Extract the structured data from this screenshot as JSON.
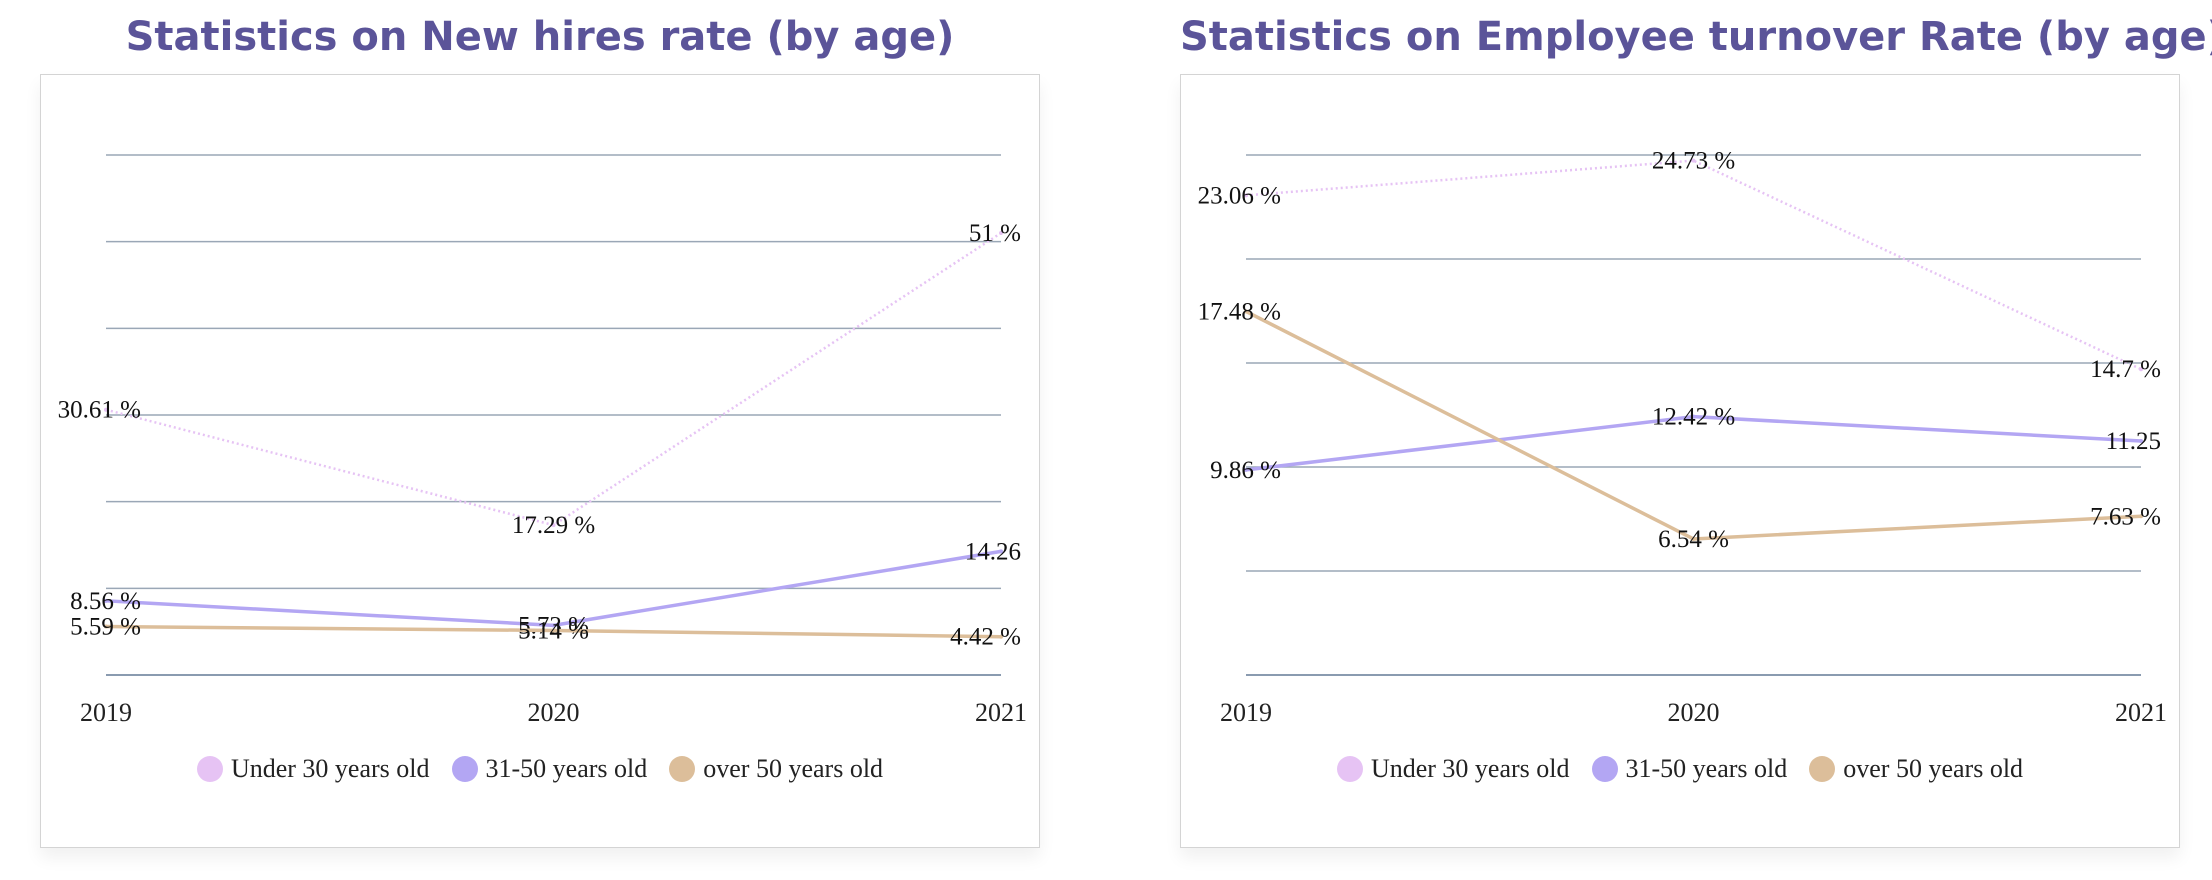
{
  "chart_data": [
    {
      "type": "line",
      "title": "Statistics on New hires rate (by age)",
      "categories": [
        "2019",
        "2020",
        "2021"
      ],
      "ylim": [
        0,
        60
      ],
      "grid": true,
      "legend_position": "bottom",
      "series": [
        {
          "name": "Under 30 years old",
          "values": [
            30.61,
            17.29,
            51
          ],
          "labels": [
            "30.61 %",
            "17.29 %",
            "51 %"
          ],
          "color": "#e6c3f4",
          "dashed": true
        },
        {
          "name": "31-50 years old",
          "values": [
            8.56,
            5.73,
            14.26
          ],
          "labels": [
            "8.56 %",
            "5.73 %",
            "14.26"
          ],
          "color": "#b3a6f3",
          "dashed": false
        },
        {
          "name": "over 50 years old",
          "values": [
            5.59,
            5.14,
            4.42
          ],
          "labels": [
            "5.59 %",
            "5.14 %",
            "4.42 %"
          ],
          "color": "#dcbe9a",
          "dashed": false
        }
      ]
    },
    {
      "type": "line",
      "title": "Statistics on Employee turnover Rate (by age)",
      "categories": [
        "2019",
        "2020",
        "2021"
      ],
      "ylim": [
        0,
        25
      ],
      "grid": true,
      "legend_position": "bottom",
      "series": [
        {
          "name": "Under 30 years old",
          "values": [
            23.06,
            24.73,
            14.7
          ],
          "labels": [
            "23.06 %",
            "24.73 %",
            "14.7 %"
          ],
          "color": "#e6c3f4",
          "dashed": true
        },
        {
          "name": "31-50 years old",
          "values": [
            9.86,
            12.42,
            11.25
          ],
          "labels": [
            "9.86 %",
            "12.42 %",
            "11.25"
          ],
          "color": "#b3a6f3",
          "dashed": false
        },
        {
          "name": "over 50 years old",
          "values": [
            17.48,
            6.54,
            7.63
          ],
          "labels": [
            "17.48 %",
            "6.54 %",
            "7.63 %"
          ],
          "color": "#dcbe9a",
          "dashed": false
        }
      ]
    }
  ]
}
